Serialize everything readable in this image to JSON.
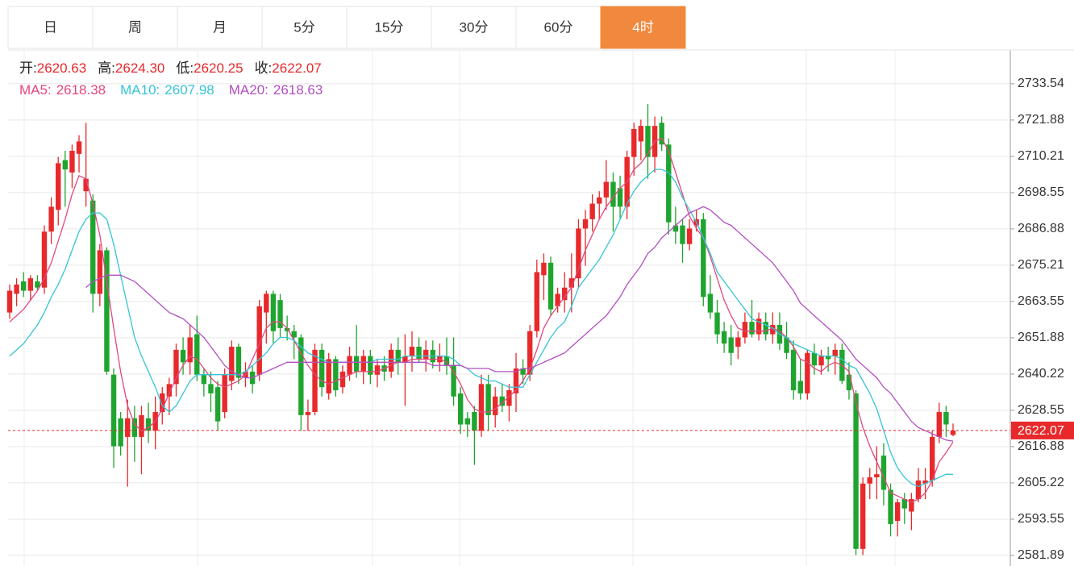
{
  "tabs": {
    "items": [
      "日",
      "周",
      "月",
      "5分",
      "15分",
      "30分",
      "60分",
      "4时"
    ],
    "active": 7
  },
  "summary_labels": [
    "开:",
    "高:",
    "低:",
    "收:"
  ],
  "summary_value_labels": [
    "2620.63",
    "2624.30",
    "2620.25",
    "2622.07"
  ],
  "chart_data": {
    "type": "candlestick",
    "up_color": "#e8292b",
    "down_color": "#1fa52f",
    "ylim": [
      2578.5,
      2744.4
    ],
    "yticks": [
      2733.54,
      2721.88,
      2710.21,
      2698.55,
      2686.88,
      2675.21,
      2663.55,
      2651.88,
      2640.22,
      2628.55,
      2616.88,
      2605.22,
      2593.55,
      2581.89
    ],
    "grid": true,
    "candles": [
      [
        2660,
        2669,
        2658,
        2667
      ],
      [
        2666,
        2671,
        2662,
        2669
      ],
      [
        2670,
        2673,
        2665,
        2667
      ],
      [
        2667,
        2672,
        2664,
        2671
      ],
      [
        2670,
        2672,
        2667,
        2668
      ],
      [
        2668,
        2688,
        2666,
        2686
      ],
      [
        2686,
        2697,
        2682,
        2694
      ],
      [
        2693,
        2710,
        2688,
        2708
      ],
      [
        2709,
        2712,
        2694,
        2706
      ],
      [
        2705,
        2714,
        2700,
        2712
      ],
      [
        2711,
        2717,
        2705,
        2715
      ],
      [
        2699,
        2721,
        2694,
        2703
      ],
      [
        2696,
        2698,
        2660,
        2666
      ],
      [
        2666,
        2682,
        2662,
        2680
      ],
      [
        2680,
        2681,
        2640,
        2641
      ],
      [
        2640,
        2642,
        2610,
        2617
      ],
      [
        2626,
        2628,
        2614,
        2617
      ],
      [
        2620,
        2632,
        2604,
        2626
      ],
      [
        2626,
        2630,
        2612,
        2620
      ],
      [
        2620,
        2630,
        2608,
        2627
      ],
      [
        2626,
        2631,
        2618,
        2622
      ],
      [
        2622,
        2633,
        2616,
        2628
      ],
      [
        2628,
        2636,
        2624,
        2634
      ],
      [
        2633,
        2639,
        2627,
        2637
      ],
      [
        2637,
        2650,
        2633,
        2648
      ],
      [
        2648,
        2652,
        2640,
        2644
      ],
      [
        2644,
        2656,
        2640,
        2652
      ],
      [
        2653,
        2659,
        2638,
        2640
      ],
      [
        2640,
        2642,
        2633,
        2637
      ],
      [
        2637,
        2641,
        2628,
        2634
      ],
      [
        2636,
        2638,
        2622,
        2625
      ],
      [
        2628,
        2642,
        2626,
        2640
      ],
      [
        2638,
        2651,
        2635,
        2649
      ],
      [
        2649,
        2650,
        2637,
        2639
      ],
      [
        2639,
        2644,
        2636,
        2641
      ],
      [
        2641,
        2643,
        2634,
        2637
      ],
      [
        2640,
        2664,
        2638,
        2662
      ],
      [
        2660,
        2667,
        2650,
        2666
      ],
      [
        2666,
        2667,
        2650,
        2654
      ],
      [
        2664,
        2666,
        2652,
        2655
      ],
      [
        2655,
        2659,
        2651,
        2654
      ],
      [
        2654,
        2656,
        2645,
        2652
      ],
      [
        2652,
        2653,
        2622,
        2627
      ],
      [
        2627,
        2632,
        2622,
        2628
      ],
      [
        2628,
        2650,
        2627,
        2648
      ],
      [
        2648,
        2650,
        2633,
        2636
      ],
      [
        2634,
        2647,
        2632,
        2645
      ],
      [
        2645,
        2646,
        2633,
        2635
      ],
      [
        2636,
        2643,
        2634,
        2641
      ],
      [
        2640,
        2649,
        2638,
        2646
      ],
      [
        2646,
        2656,
        2639,
        2641
      ],
      [
        2641,
        2648,
        2637,
        2646
      ],
      [
        2646,
        2648,
        2637,
        2640
      ],
      [
        2640,
        2645,
        2636,
        2643
      ],
      [
        2643,
        2646,
        2638,
        2641
      ],
      [
        2641,
        2650,
        2639,
        2648
      ],
      [
        2648,
        2652,
        2640,
        2644
      ],
      [
        2644,
        2653,
        2630,
        2646
      ],
      [
        2646,
        2654,
        2641,
        2649
      ],
      [
        2649,
        2652,
        2644,
        2645
      ],
      [
        2645,
        2651,
        2641,
        2648
      ],
      [
        2648,
        2651,
        2642,
        2644
      ],
      [
        2644,
        2650,
        2641,
        2646
      ],
      [
        2646,
        2652,
        2640,
        2643
      ],
      [
        2643,
        2652,
        2630,
        2633
      ],
      [
        2634,
        2636,
        2621,
        2624
      ],
      [
        2626,
        2628,
        2620,
        2624
      ],
      [
        2628,
        2630,
        2611,
        2622
      ],
      [
        2622,
        2640,
        2620,
        2637
      ],
      [
        2637,
        2640,
        2622,
        2627
      ],
      [
        2627,
        2636,
        2623,
        2633
      ],
      [
        2633,
        2637,
        2628,
        2630
      ],
      [
        2630,
        2637,
        2625,
        2635
      ],
      [
        2634,
        2647,
        2628,
        2642
      ],
      [
        2642,
        2645,
        2637,
        2640
      ],
      [
        2640,
        2656,
        2638,
        2654
      ],
      [
        2654,
        2677,
        2652,
        2673
      ],
      [
        2672,
        2679,
        2664,
        2676
      ],
      [
        2676,
        2678,
        2659,
        2661
      ],
      [
        2662,
        2668,
        2660,
        2666
      ],
      [
        2664,
        2673,
        2660,
        2668
      ],
      [
        2668,
        2679,
        2660,
        2671
      ],
      [
        2671,
        2690,
        2668,
        2687
      ],
      [
        2687,
        2693,
        2675,
        2690
      ],
      [
        2690,
        2698,
        2686,
        2695
      ],
      [
        2695,
        2699,
        2690,
        2697
      ],
      [
        2697,
        2709,
        2693,
        2702
      ],
      [
        2702,
        2705,
        2686,
        2694
      ],
      [
        2700,
        2704,
        2690,
        2694
      ],
      [
        2694,
        2712,
        2690,
        2710
      ],
      [
        2710,
        2721,
        2704,
        2719
      ],
      [
        2715,
        2722,
        2709,
        2720
      ],
      [
        2720,
        2727,
        2703,
        2710
      ],
      [
        2710,
        2723,
        2705,
        2720
      ],
      [
        2721,
        2723,
        2712,
        2714
      ],
      [
        2714,
        2716,
        2685,
        2689
      ],
      [
        2688,
        2694,
        2682,
        2686
      ],
      [
        2688,
        2690,
        2676,
        2682
      ],
      [
        2682,
        2690,
        2680,
        2687
      ],
      [
        2688,
        2693,
        2686,
        2690
      ],
      [
        2690,
        2692,
        2662,
        2665
      ],
      [
        2666,
        2672,
        2658,
        2660
      ],
      [
        2660,
        2664,
        2650,
        2653
      ],
      [
        2654,
        2657,
        2647,
        2650
      ],
      [
        2652,
        2656,
        2643,
        2647
      ],
      [
        2649,
        2654,
        2645,
        2652
      ],
      [
        2652,
        2660,
        2650,
        2657
      ],
      [
        2657,
        2664,
        2652,
        2653
      ],
      [
        2653,
        2660,
        2651,
        2658
      ],
      [
        2657,
        2660,
        2651,
        2653
      ],
      [
        2653,
        2660,
        2650,
        2656
      ],
      [
        2656,
        2660,
        2648,
        2650
      ],
      [
        2652,
        2657,
        2645,
        2647
      ],
      [
        2648,
        2651,
        2632,
        2635
      ],
      [
        2638,
        2645,
        2632,
        2634
      ],
      [
        2634,
        2648,
        2632,
        2647
      ],
      [
        2647,
        2650,
        2640,
        2643
      ],
      [
        2643,
        2648,
        2640,
        2646
      ],
      [
        2646,
        2649,
        2641,
        2645
      ],
      [
        2646,
        2650,
        2640,
        2648
      ],
      [
        2648,
        2650,
        2637,
        2638
      ],
      [
        2640,
        2644,
        2632,
        2635
      ],
      [
        2634,
        2635,
        2582,
        2584
      ],
      [
        2584,
        2607,
        2582,
        2605
      ],
      [
        2605,
        2610,
        2600,
        2607
      ],
      [
        2607,
        2617,
        2600,
        2608
      ],
      [
        2614,
        2618,
        2598,
        2603
      ],
      [
        2603,
        2605,
        2588,
        2592
      ],
      [
        2593,
        2600,
        2588,
        2599
      ],
      [
        2600,
        2602,
        2592,
        2597
      ],
      [
        2596,
        2602,
        2590,
        2600
      ],
      [
        2600,
        2610,
        2599,
        2606
      ],
      [
        2605,
        2610,
        2600,
        2606
      ],
      [
        2606,
        2622,
        2604,
        2620
      ],
      [
        2620,
        2631,
        2618,
        2628
      ],
      [
        2628,
        2630,
        2620,
        2624
      ],
      [
        2620.63,
        2624.3,
        2620.25,
        2622.07
      ]
    ],
    "series": [
      {
        "name": "MA5:",
        "color": "#e4477f",
        "values": [
          2657,
          2659,
          2661,
          2664,
          2667,
          2671,
          2676,
          2683,
          2690,
          2698,
          2704,
          2703,
          2695,
          2685,
          2670,
          2655,
          2641,
          2630,
          2624,
          2622,
          2623,
          2625,
          2629,
          2634,
          2639,
          2643,
          2646,
          2645,
          2642,
          2639,
          2637,
          2636,
          2637,
          2638,
          2640,
          2645,
          2650,
          2655,
          2657,
          2657,
          2655,
          2651,
          2647,
          2643,
          2640,
          2638,
          2637,
          2638,
          2639,
          2640,
          2641,
          2641,
          2641,
          2641,
          2642,
          2643,
          2644,
          2644,
          2645,
          2645,
          2645,
          2645,
          2645,
          2644,
          2641,
          2637,
          2632,
          2629,
          2628,
          2628,
          2629,
          2631,
          2633,
          2635,
          2638,
          2642,
          2648,
          2655,
          2659,
          2662,
          2665,
          2668,
          2674,
          2680,
          2685,
          2690,
          2694,
          2697,
          2700,
          2702,
          2706,
          2708,
          2711,
          2715,
          2716,
          2712,
          2705,
          2698,
          2691,
          2687,
          2684,
          2678,
          2671,
          2664,
          2659,
          2655,
          2654,
          2654,
          2654,
          2654,
          2655,
          2654,
          2652,
          2649,
          2645,
          2644,
          2642,
          2641,
          2643,
          2644,
          2643,
          2641,
          2631,
          2623,
          2617,
          2612,
          2607,
          2602,
          2601,
          2600,
          2599,
          2600,
          2602,
          2606,
          2612,
          2615,
          2618.38
        ]
      },
      {
        "name": "MA10:",
        "color": "#35c4d6",
        "values": [
          2646,
          2648,
          2650,
          2653,
          2656,
          2660,
          2665,
          2669,
          2674,
          2680,
          2686,
          2690,
          2692,
          2692,
          2690,
          2682,
          2672,
          2662,
          2652,
          2646,
          2641,
          2636,
          2630,
          2628,
          2630,
          2634,
          2638,
          2640,
          2640,
          2640,
          2640,
          2640,
          2640,
          2640,
          2641,
          2643,
          2645,
          2647,
          2650,
          2652,
          2652,
          2651,
          2649,
          2647,
          2646,
          2645,
          2644,
          2644,
          2644,
          2644,
          2644,
          2644,
          2644,
          2645,
          2645,
          2645,
          2645,
          2646,
          2646,
          2646,
          2646,
          2646,
          2646,
          2646,
          2645,
          2643,
          2642,
          2640,
          2639,
          2638,
          2638,
          2637,
          2636,
          2636,
          2636,
          2640,
          2644,
          2648,
          2652,
          2655,
          2657,
          2662,
          2668,
          2671,
          2674,
          2677,
          2681,
          2685,
          2690,
          2695,
          2699,
          2702,
          2704,
          2706,
          2706,
          2705,
          2702,
          2697,
          2693,
          2689,
          2684,
          2679,
          2673,
          2670,
          2667,
          2664,
          2661,
          2658,
          2657,
          2656,
          2655,
          2653,
          2652,
          2650,
          2649,
          2648,
          2647,
          2646,
          2646,
          2646,
          2645,
          2643,
          2642,
          2638,
          2634,
          2629,
          2622,
          2615,
          2610,
          2607,
          2605,
          2604,
          2605,
          2606,
          2607,
          2608,
          2607.98
        ]
      },
      {
        "name": "MA20:",
        "color": "#b24ec2",
        "values": [
          null,
          null,
          null,
          null,
          null,
          null,
          null,
          null,
          null,
          null,
          null,
          2668,
          2670,
          2671,
          2672,
          2672,
          2672,
          2671,
          2670,
          2668,
          2666,
          2664,
          2662,
          2660,
          2659,
          2658,
          2656,
          2654,
          2652,
          2649,
          2646,
          2643,
          2641,
          2640,
          2639,
          2639,
          2640,
          2641,
          2642,
          2643,
          2644,
          2644,
          2644,
          2644,
          2644,
          2644,
          2644,
          2644,
          2644,
          2644,
          2644,
          2644,
          2644,
          2644,
          2644,
          2644,
          2644,
          2644,
          2644,
          2644,
          2644,
          2643,
          2643,
          2643,
          2643,
          2643,
          2642,
          2642,
          2642,
          2642,
          2641,
          2641,
          2641,
          2641,
          2642,
          2642,
          2643,
          2644,
          2645,
          2646,
          2647,
          2649,
          2651,
          2653,
          2655,
          2657,
          2659,
          2662,
          2665,
          2669,
          2672,
          2675,
          2679,
          2681,
          2684,
          2686,
          2688,
          2690,
          2692,
          2693,
          2694,
          2693,
          2691,
          2689,
          2688,
          2686,
          2684,
          2682,
          2680,
          2678,
          2676,
          2673,
          2670,
          2667,
          2663,
          2661,
          2659,
          2657,
          2655,
          2653,
          2651,
          2648,
          2645,
          2643,
          2641,
          2639,
          2636,
          2634,
          2631,
          2628,
          2625,
          2623,
          2622,
          2621,
          2620,
          2619,
          2618.63
        ]
      }
    ]
  }
}
